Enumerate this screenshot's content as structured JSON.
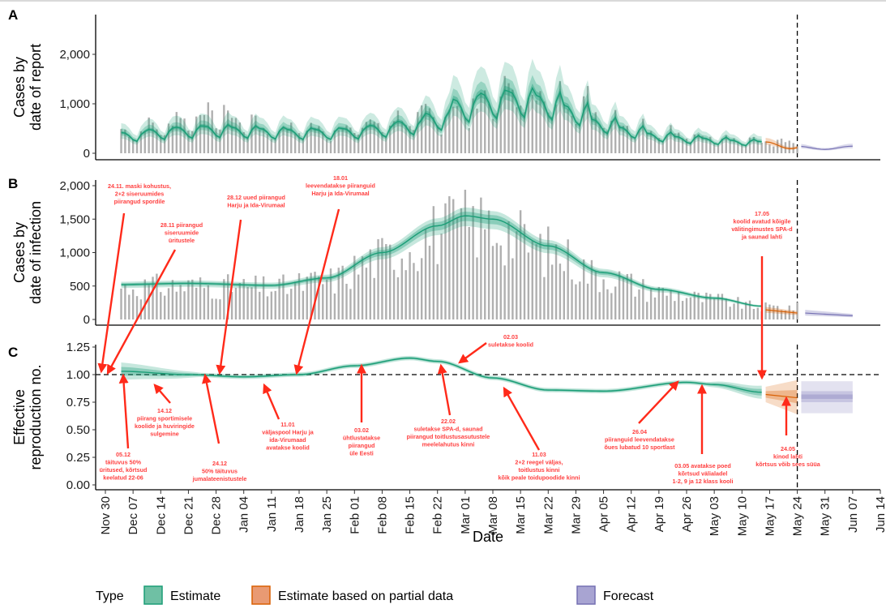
{
  "chart_data": [
    {
      "panel": "A",
      "type": "bar",
      "ylabel": [
        "Cases by",
        "date of report"
      ],
      "yticks": [
        0,
        1000,
        2000
      ],
      "ytick_labels": [
        "0",
        "1,000",
        "2,000"
      ],
      "ylim": [
        0,
        2800
      ],
      "weekly_pattern_note": "daily reported cases with weekly cycle; estimate median and CI bands",
      "bar_weekly_peaks": [
        560,
        720,
        950,
        1060,
        840,
        600,
        640,
        600,
        700,
        780,
        900,
        1000,
        1200,
        1480,
        1560,
        1400,
        1300,
        1000,
        720,
        560,
        460,
        420,
        350,
        300,
        260,
        220,
        180
      ],
      "estimate_weekly_peaks": [
        520,
        600,
        650,
        680,
        650,
        620,
        600,
        600,
        620,
        700,
        800,
        1000,
        1350,
        1500,
        1550,
        1450,
        1200,
        850,
        650,
        500,
        420,
        380,
        330,
        300
      ],
      "partial_peak": 230,
      "forecast_level": 130
    },
    {
      "panel": "B",
      "type": "bar",
      "ylabel": [
        "Cases by",
        "date of infection"
      ],
      "yticks": [
        0,
        500,
        1000,
        1500,
        2000
      ],
      "ytick_labels": [
        "0",
        "500",
        "1,000",
        "1,500",
        "2,000"
      ],
      "ylim": [
        0,
        2050
      ],
      "estimate_curve": {
        "Dec 01": 520,
        "Dec 21": 540,
        "Jan 11": 510,
        "Jan 25": 620,
        "Feb 08": 1000,
        "Feb 22": 1400,
        "Mar 01": 1550,
        "Mar 08": 1500,
        "Mar 22": 1100,
        "Apr 05": 700,
        "Apr 19": 450,
        "May 03": 320,
        "May 15": 200
      },
      "partial_range": [
        "May 16",
        "May 24"
      ],
      "partial_level": 120,
      "forecast_level": 80
    },
    {
      "panel": "C",
      "type": "line",
      "ylabel": [
        "Effective",
        "reproduction no."
      ],
      "yticks": [
        0,
        0.25,
        0.5,
        0.75,
        1.0,
        1.25
      ],
      "ytick_labels": [
        "0.00",
        "0.25",
        "0.50",
        "0.75",
        "1.00",
        "1.25"
      ],
      "ylim": [
        0,
        1.3
      ],
      "reference_line": 1.0,
      "estimate_curve": {
        "Dec 04": 1.03,
        "Dec 21": 1.0,
        "Jan 04": 0.98,
        "Jan 18": 1.0,
        "Feb 01": 1.08,
        "Feb 15": 1.15,
        "Feb 22": 1.12,
        "Mar 08": 0.97,
        "Mar 22": 0.86,
        "Apr 05": 0.85,
        "Apr 26": 0.93,
        "May 03": 0.91,
        "May 15": 0.84
      },
      "partial_value": 0.82,
      "forecast_value": 0.8
    }
  ],
  "x_axis": {
    "title": "Date",
    "ticks": [
      "Nov 30",
      "Dec 07",
      "Dec 14",
      "Dec 21",
      "Dec 28",
      "Jan 04",
      "Jan 11",
      "Jan 18",
      "Jan 25",
      "Feb 01",
      "Feb 08",
      "Feb 15",
      "Feb 22",
      "Mar 01",
      "Mar 08",
      "Mar 15",
      "Mar 22",
      "Mar 29",
      "Apr 05",
      "Apr 12",
      "Apr 19",
      "Apr 26",
      "May 03",
      "May 10",
      "May 17",
      "May 24",
      "May 31",
      "Jun 07",
      "Jun 14"
    ],
    "vline_date": "May 24"
  },
  "legend": {
    "title": "Type",
    "placement": "bottom",
    "items": [
      {
        "label": "Estimate",
        "color": "#1b9e77"
      },
      {
        "label": "Estimate based on partial data",
        "color": "#d95f02"
      },
      {
        "label": "Forecast",
        "color": "#7570b3"
      }
    ]
  },
  "colors": {
    "bars": "#b0b0b0",
    "annotation": "#ff3b30"
  },
  "annotations": [
    {
      "lines": [
        "24.11. maski kohustus,",
        "2+2 siseruumides",
        "piirangud spordile"
      ]
    },
    {
      "lines": [
        "28.11 piirangud",
        "siseruumide",
        "üritustele"
      ]
    },
    {
      "lines": [
        "28.12 uued piirangud",
        "Harju ja Ida-Virumaal"
      ]
    },
    {
      "lines": [
        "18.01",
        "leevendatakse piiranguid",
        "Harju ja Ida-Virumaal"
      ]
    },
    {
      "lines": [
        "17.05",
        "koolid avatud kõigile",
        "välitingimustes SPA-d",
        "ja saunad lahti"
      ]
    },
    {
      "lines": [
        "02.03",
        "suletakse koolid"
      ]
    },
    {
      "lines": [
        "14.12",
        "piirang sportimisele",
        "koolide ja huviringide",
        "sulgemine"
      ]
    },
    {
      "lines": [
        "05.12",
        "täituvus 50%",
        "üritused, kõrtsud",
        "keelatud 22-06"
      ]
    },
    {
      "lines": [
        "24.12",
        "50% täituvus",
        "jumalateenistustele"
      ]
    },
    {
      "lines": [
        "11.01",
        "väljaspool Harju ja",
        "ida-Virumaad",
        "avatakse koolid"
      ]
    },
    {
      "lines": [
        "03.02",
        "ühtlustatakse",
        "piirangud",
        "üle Eesti"
      ]
    },
    {
      "lines": [
        "22.02",
        "suletakse SPA-d, saunad",
        "piirangud toitlustusasutustele",
        "meelelahutus kinni"
      ]
    },
    {
      "lines": [
        "11.03",
        "2+2 reegel väljas,",
        "toitlustus kinni",
        "kõik peale toidupoodide kinni"
      ]
    },
    {
      "lines": [
        "26.04",
        "piiranguid leevendatakse",
        "õues lubatud 10 sportlast"
      ]
    },
    {
      "lines": [
        "03.05 avatakse poed",
        "kõrtsud välialadel",
        "1-2, 9 ja 12 klass kooli"
      ]
    },
    {
      "lines": [
        "24.05",
        "kinod lahti",
        "kõrtsus võib sees süüa"
      ]
    }
  ]
}
